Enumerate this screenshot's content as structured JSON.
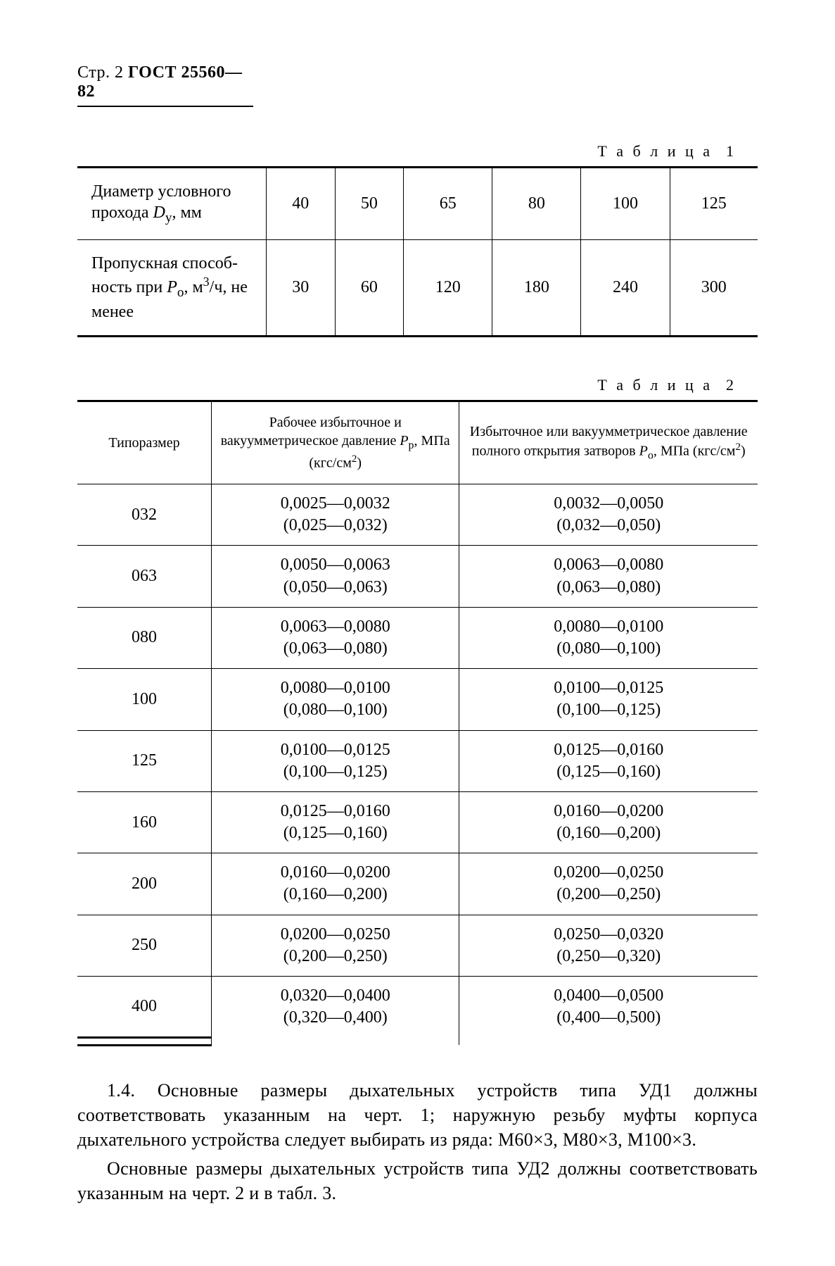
{
  "header": {
    "page_label": "Стр. 2",
    "doc_id": "ГОСТ 25560—82"
  },
  "table1": {
    "caption": "Т а б л и ц а  1",
    "row1_label": "Диаметр условного прохода <span class='sub'>D</span><span class='ssub'>у</span>, мм",
    "row2_label": "Пропускная способ­ность при <span class='sub'>P</span><span class='ssub'>о</span>, м<span class='sup'>3</span>/ч, не менее",
    "cols": [
      "40",
      "50",
      "65",
      "80",
      "100",
      "125"
    ],
    "vals": [
      "30",
      "60",
      "120",
      "180",
      "240",
      "300"
    ]
  },
  "table2": {
    "caption": "Т а б л и ц а  2",
    "h1": "Типоразмер",
    "h2": "Рабочее избыточное и вакуумметрическое давление <span class='sub'>P</span><span class='ssub'>р</span>, МПа (кгс/см<span class='sup'>2</span>)",
    "h3": "Избыточное или вакуумметрическое давление полного открытия затворов <span class='sub'>P</span><span class='ssub'>о</span>, МПа (кгс/см<span class='sup'>2</span>)",
    "rows": [
      {
        "s": "032",
        "p": "0,0025—0,0032<br>(0,025—0,032)",
        "o": "0,0032—0,0050<br>(0,032—0,050)"
      },
      {
        "s": "063",
        "p": "0,0050—0,0063<br>(0,050—0,063)",
        "o": "0,0063—0,0080<br>(0,063—0,080)"
      },
      {
        "s": "080",
        "p": "0,0063—0,0080<br>(0,063—0,080)",
        "o": "0,0080—0,0100<br>(0,080—0,100)"
      },
      {
        "s": "100",
        "p": "0,0080—0,0100<br>(0,080—0,100)",
        "o": "0,0100—0,0125<br>(0,100—0,125)"
      },
      {
        "s": "125",
        "p": "0,0100—0,0125<br>(0,100—0,125)",
        "o": "0,0125—0,0160<br>(0,125—0,160)"
      },
      {
        "s": "160",
        "p": "0,0125—0,0160<br>(0,125—0,160)",
        "o": "0,0160—0,0200<br>(0,160—0,200)"
      },
      {
        "s": "200",
        "p": "0,0160—0,0200<br>(0,160—0,200)",
        "o": "0,0200—0,0250<br>(0,200—0,250)"
      },
      {
        "s": "250",
        "p": "0,0200—0,0250<br>(0,200—0,250)",
        "o": "0,0250—0,0320<br>(0,250—0,320)"
      },
      {
        "s": "400",
        "p": "0,0320—0,0400<br>(0,320—0,400)",
        "o": "0,0400—0,0500<br>(0,400—0,500)"
      }
    ]
  },
  "para": {
    "p1": "1.4. Основные размеры дыхательных устройств типа УД1 дол­жны соответствовать указанным на черт. 1; наружную резьбу муфты корпуса дыхательного устройства следует выбирать из ря­да: М60×3, М80×3, М100×3.",
    "p2": "Основные размеры дыхательных устройств типа УД2 должны соответствовать указанным на черт. 2 и в табл. 3."
  }
}
